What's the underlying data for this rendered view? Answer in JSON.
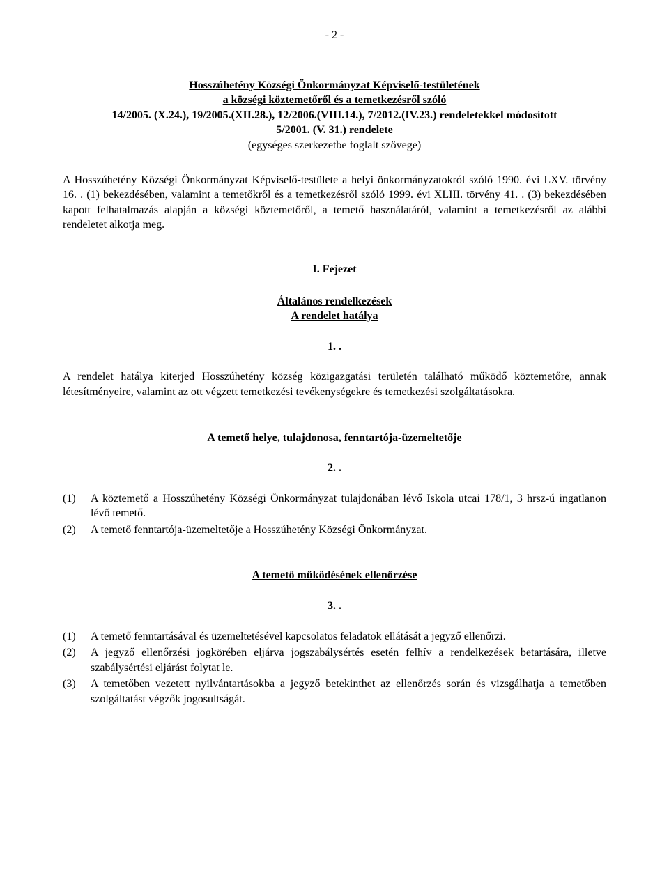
{
  "page_number": "- 2 -",
  "header": {
    "line1": "Hosszúhetény Községi Önkormányzat Képviselő-testületének",
    "line2": "a községi köztemetőről és a temetkezésről szóló",
    "line3": "14/2005. (X.24.), 19/2005.(XII.28.), 12/2006.(VIII.14.), 7/2012.(IV.23.) rendeletekkel módosított",
    "line4": "5/2001. (V. 31.) rendelete",
    "line5": "(egységes szerkezetbe foglalt szövege)"
  },
  "preamble": "A Hosszúhetény Községi Önkormányzat Képviselő-testülete a helyi önkormányzatokról szóló 1990. évi LXV. törvény 16. . (1) bekezdésében, valamint a temetőkről és a temetkezésről szóló 1999. évi XLIII. törvény 41. . (3) bekezdésében kapott felhatalmazás alapján a községi köztemetőről, a temető használatáról, valamint a temetkezésről az alábbi rendeletet alkotja meg.",
  "chapter": "I. Fejezet",
  "section1": {
    "heading_line1": "Általános rendelkezések",
    "heading_line2": "A rendelet hatálya",
    "number": "1. .",
    "body": "A rendelet hatálya kiterjed Hosszúhetény község közigazgatási területén található működő köztemetőre, annak létesítményeire, valamint az ott végzett temetkezési tevékenységekre és temetkezési szolgáltatásokra."
  },
  "section2": {
    "heading": "A temető helye, tulajdonosa, fenntartója-üzemeltetője",
    "number": "2. .",
    "items": [
      {
        "label": "(1)",
        "text": "A köztemető a Hosszúhetény Községi Önkormányzat tulajdonában lévő Iskola utcai 178/1, 3 hrsz-ú ingatlanon lévő temető."
      },
      {
        "label": "(2)",
        "text": "A temető fenntartója-üzemeltetője a Hosszúhetény Községi Önkormányzat."
      }
    ]
  },
  "section3": {
    "heading": "A temető működésének ellenőrzése",
    "number": "3. .",
    "items": [
      {
        "label": "(1)",
        "text": "A temető fenntartásával és üzemeltetésével kapcsolatos feladatok ellátását a jegyző ellenőrzi."
      },
      {
        "label": "(2)",
        "text": "A jegyző ellenőrzési jogkörében eljárva jogszabálysértés esetén felhív a rendelkezések betartására, illetve szabálysértési eljárást folytat le."
      },
      {
        "label": "(3)",
        "text": "A temetőben vezetett nyilvántartásokba a jegyző betekinthet az ellenőrzés során és vizsgálhatja a temetőben szolgáltatást végzők jogosultságát."
      }
    ]
  }
}
